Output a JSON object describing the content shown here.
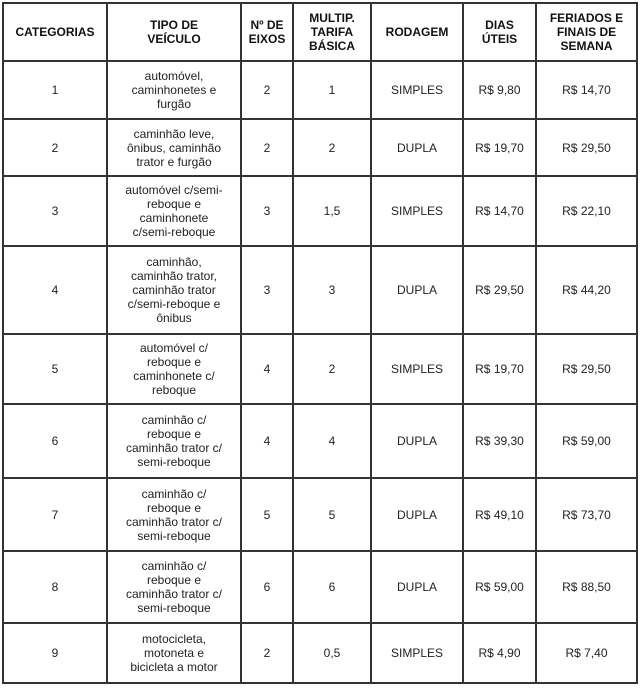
{
  "headers": [
    "CATEGORIAS",
    "TIPO DE\nVEÍCULO",
    "Nº DE\nEIXOS",
    "MULTIP.\nTARIFA\nBÁSICA",
    "RODAGEM",
    "DIAS\nÚTEIS",
    "FERIADOS E\nFINAIS DE\nSEMANA"
  ],
  "rows": [
    {
      "categoria": "1",
      "tipo": "automóvel,\ncaminhonetes e\nfurgão",
      "eixos": "2",
      "multip": "1",
      "rodagem": "SIMPLES",
      "dias_uteis": "R$ 9,80",
      "feriados": "R$ 14,70"
    },
    {
      "categoria": "2",
      "tipo": "caminhão leve,\nônibus, caminhão\ntrator e furgão",
      "eixos": "2",
      "multip": "2",
      "rodagem": "DUPLA",
      "dias_uteis": "R$ 19,70",
      "feriados": "R$ 29,50"
    },
    {
      "categoria": "3",
      "tipo": "automóvel c/semi-\nreboque e\ncaminhonete\nc/semi-reboque",
      "eixos": "3",
      "multip": "1,5",
      "rodagem": "SIMPLES",
      "dias_uteis": "R$ 14,70",
      "feriados": "R$ 22,10"
    },
    {
      "categoria": "4",
      "tipo": "caminhão,\ncaminhão trator,\ncaminhão trator\nc/semi-reboque e\nônibus",
      "eixos": "3",
      "multip": "3",
      "rodagem": "DUPLA",
      "dias_uteis": "R$ 29,50",
      "feriados": "R$ 44,20"
    },
    {
      "categoria": "5",
      "tipo": "automóvel c/\nreboque e\ncaminhonete c/\nreboque",
      "eixos": "4",
      "multip": "2",
      "rodagem": "SIMPLES",
      "dias_uteis": "R$ 19,70",
      "feriados": "R$ 29,50"
    },
    {
      "categoria": "6",
      "tipo": "caminhão c/\nreboque e\ncaminhão trator c/\nsemi-reboque",
      "eixos": "4",
      "multip": "4",
      "rodagem": "DUPLA",
      "dias_uteis": "R$ 39,30",
      "feriados": "R$ 59,00"
    },
    {
      "categoria": "7",
      "tipo": "caminhão c/\nreboque e\ncaminhão trator c/\nsemi-reboque",
      "eixos": "5",
      "multip": "5",
      "rodagem": "DUPLA",
      "dias_uteis": "R$ 49,10",
      "feriados": "R$ 73,70"
    },
    {
      "categoria": "8",
      "tipo": "caminhão c/\nreboque e\ncaminhão trator c/\nsemi-reboque",
      "eixos": "6",
      "multip": "6",
      "rodagem": "DUPLA",
      "dias_uteis": "R$ 59,00",
      "feriados": "R$ 88,50"
    },
    {
      "categoria": "9",
      "tipo": "motocicleta,\nmotoneta e\nbicicleta a motor",
      "eixos": "2",
      "multip": "0,5",
      "rodagem": "SIMPLES",
      "dias_uteis": "R$ 4,90",
      "feriados": "R$ 7,40"
    }
  ]
}
